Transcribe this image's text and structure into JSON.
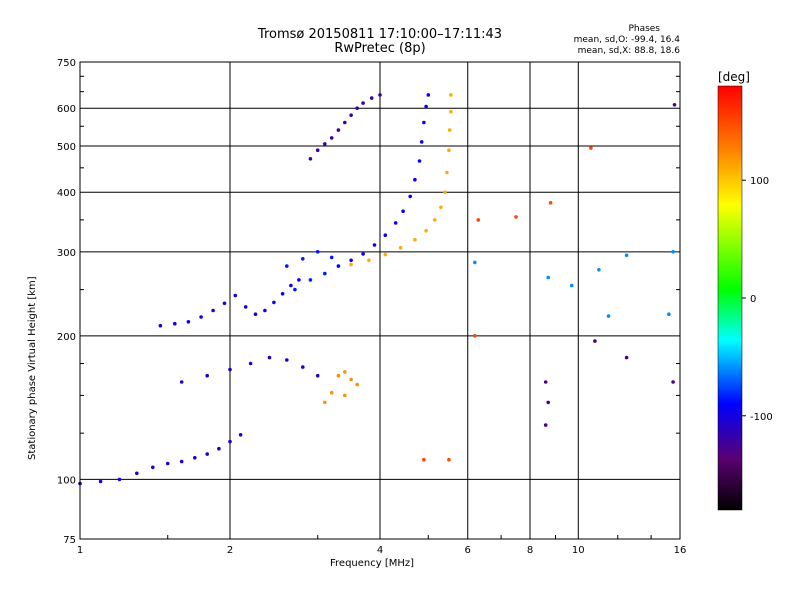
{
  "title_line1": "Tromsø 20150811 17:10:00–17:11:43",
  "title_line2": "RwPretec (8p)",
  "stats": {
    "heading": "Phases",
    "line_o": "mean, sd,O: -99.4, 16.4",
    "line_x": "mean, sd,X: 88.8, 18.6"
  },
  "colorbar": {
    "label": "[deg]",
    "ticks": [
      "100",
      "0",
      "-100"
    ],
    "tick_values": [
      100,
      0,
      -100
    ],
    "range": [
      -180,
      180
    ]
  },
  "chart_data": {
    "type": "scatter",
    "title": "Tromsø 20150811 17:10:00–17:11:43",
    "subtitle": "RwPretec (8p)",
    "xlabel": "Frequency [MHz]",
    "ylabel": "Stationary phase Virtual Height [km]",
    "x_scale": "log",
    "y_scale": "log",
    "xlim": [
      1,
      16
    ],
    "ylim": [
      75,
      750
    ],
    "x_ticks": [
      "1",
      "2",
      "4",
      "6",
      "8",
      "10",
      "16"
    ],
    "x_tick_values": [
      1,
      2,
      4,
      6,
      8,
      10,
      16
    ],
    "y_ticks": [
      "75",
      "100",
      "200",
      "300",
      "400",
      "500",
      "600",
      "750"
    ],
    "y_tick_values": [
      75,
      100,
      200,
      300,
      400,
      500,
      600,
      750
    ],
    "grid": true,
    "color_quantity": "phase [deg]",
    "traces": [
      {
        "phase": -105,
        "points": [
          [
            1.0,
            98
          ],
          [
            1.1,
            99
          ],
          [
            1.2,
            100
          ],
          [
            1.3,
            103
          ],
          [
            1.4,
            106
          ],
          [
            1.5,
            108
          ],
          [
            1.6,
            109
          ],
          [
            1.7,
            111
          ],
          [
            1.8,
            113
          ],
          [
            1.9,
            116
          ],
          [
            2.0,
            120
          ],
          [
            2.1,
            124
          ]
        ]
      },
      {
        "phase": -100,
        "points": [
          [
            1.45,
            210
          ],
          [
            1.55,
            212
          ],
          [
            1.65,
            214
          ],
          [
            1.75,
            219
          ],
          [
            1.85,
            226
          ],
          [
            1.95,
            234
          ],
          [
            2.05,
            243
          ],
          [
            2.15,
            230
          ],
          [
            2.25,
            222
          ],
          [
            2.35,
            226
          ],
          [
            2.45,
            235
          ],
          [
            2.55,
            245
          ],
          [
            2.65,
            255
          ],
          [
            2.75,
            262
          ]
        ]
      },
      {
        "phase": -95,
        "points": [
          [
            3.3,
            280
          ],
          [
            3.5,
            288
          ],
          [
            3.7,
            297
          ],
          [
            3.9,
            310
          ],
          [
            4.1,
            325
          ],
          [
            4.3,
            345
          ],
          [
            4.45,
            365
          ],
          [
            4.6,
            392
          ],
          [
            4.7,
            425
          ],
          [
            4.8,
            465
          ],
          [
            4.85,
            510
          ],
          [
            4.9,
            560
          ],
          [
            4.95,
            605
          ],
          [
            5.0,
            640
          ]
        ]
      },
      {
        "phase": 110,
        "points": [
          [
            3.5,
            282
          ],
          [
            3.8,
            288
          ],
          [
            4.1,
            296
          ],
          [
            4.4,
            306
          ],
          [
            4.7,
            318
          ],
          [
            4.95,
            332
          ],
          [
            5.15,
            350
          ],
          [
            5.3,
            372
          ],
          [
            5.4,
            400
          ],
          [
            5.45,
            440
          ],
          [
            5.5,
            490
          ],
          [
            5.52,
            540
          ],
          [
            5.55,
            590
          ],
          [
            5.55,
            640
          ]
        ]
      },
      {
        "phase": -120,
        "points": [
          [
            2.9,
            470
          ],
          [
            3.0,
            490
          ],
          [
            3.1,
            505
          ],
          [
            3.2,
            520
          ],
          [
            3.3,
            540
          ],
          [
            3.4,
            560
          ],
          [
            3.5,
            580
          ],
          [
            3.6,
            600
          ],
          [
            3.7,
            615
          ],
          [
            3.85,
            630
          ],
          [
            4.0,
            640
          ]
        ]
      },
      {
        "phase": -110,
        "points": [
          [
            1.6,
            160
          ],
          [
            1.8,
            165
          ],
          [
            2.0,
            170
          ],
          [
            2.2,
            175
          ],
          [
            2.4,
            180
          ],
          [
            2.6,
            178
          ],
          [
            2.8,
            172
          ],
          [
            3.0,
            165
          ]
        ]
      },
      {
        "phase": -85,
        "points": [
          [
            2.6,
            280
          ],
          [
            2.8,
            290
          ],
          [
            3.0,
            300
          ],
          [
            3.2,
            292
          ],
          [
            2.7,
            250
          ],
          [
            2.9,
            262
          ],
          [
            3.1,
            270
          ]
        ]
      },
      {
        "phase": 120,
        "points": [
          [
            3.3,
            165
          ],
          [
            3.4,
            168
          ],
          [
            3.5,
            162
          ],
          [
            3.6,
            158
          ],
          [
            3.2,
            152
          ],
          [
            3.4,
            150
          ],
          [
            3.1,
            145
          ]
        ]
      },
      {
        "phase": 150,
        "points": [
          [
            6.3,
            350
          ],
          [
            7.5,
            355
          ],
          [
            8.8,
            380
          ],
          [
            6.2,
            200
          ],
          [
            10.6,
            495
          ],
          [
            4.9,
            110
          ],
          [
            5.5,
            110
          ]
        ]
      },
      {
        "phase": -60,
        "points": [
          [
            6.2,
            285
          ],
          [
            8.7,
            265
          ],
          [
            9.7,
            255
          ],
          [
            11.0,
            275
          ],
          [
            12.5,
            295
          ],
          [
            15.5,
            300
          ],
          [
            11.5,
            220
          ],
          [
            15.2,
            222
          ]
        ]
      },
      {
        "phase": -130,
        "points": [
          [
            8.6,
            160
          ],
          [
            8.7,
            145
          ],
          [
            8.6,
            130
          ],
          [
            12.5,
            180
          ],
          [
            15.5,
            160
          ],
          [
            10.8,
            195
          ],
          [
            15.6,
            610
          ]
        ]
      }
    ]
  }
}
